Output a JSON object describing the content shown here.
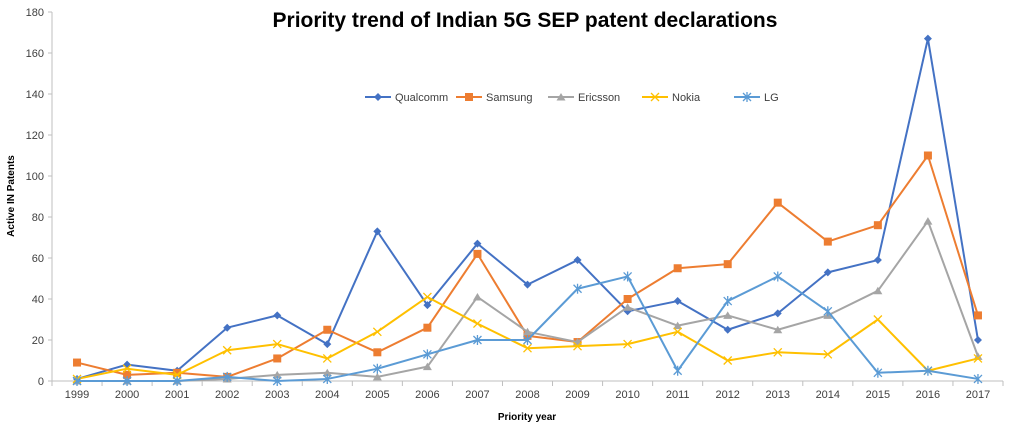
{
  "chart_data": {
    "type": "line",
    "title": "Priority trend of Indian 5G SEP patent declarations",
    "xlabel": "Priority year",
    "ylabel": "Active IN Patents",
    "ylim": [
      0,
      180
    ],
    "yticks": [
      0,
      20,
      40,
      60,
      80,
      100,
      120,
      140,
      160,
      180
    ],
    "grid": false,
    "legend_placement": "top-center",
    "categories": [
      "1999",
      "2000",
      "2001",
      "2002",
      "2003",
      "2004",
      "2005",
      "2006",
      "2007",
      "2008",
      "2009",
      "2010",
      "2011",
      "2012",
      "2013",
      "2014",
      "2015",
      "2016",
      "2017"
    ],
    "series": [
      {
        "name": "Qualcomm",
        "color": "#4472C4",
        "marker": "diamond",
        "values": [
          1,
          8,
          5,
          26,
          32,
          18,
          73,
          37,
          67,
          47,
          59,
          34,
          39,
          25,
          33,
          53,
          59,
          167,
          20
        ]
      },
      {
        "name": "Samsung",
        "color": "#ED7D31",
        "marker": "square",
        "values": [
          9,
          3,
          4,
          2,
          11,
          25,
          14,
          26,
          62,
          22,
          19,
          40,
          55,
          57,
          87,
          68,
          76,
          110,
          32
        ]
      },
      {
        "name": "Ericsson",
        "color": "#A5A5A5",
        "marker": "triangle",
        "values": [
          0,
          0,
          0,
          1,
          3,
          4,
          2,
          7,
          41,
          24,
          19,
          36,
          27,
          32,
          25,
          32,
          44,
          78,
          12
        ]
      },
      {
        "name": "Nokia",
        "color": "#FFC000",
        "marker": "x",
        "values": [
          1,
          6,
          3,
          15,
          18,
          11,
          24,
          41,
          28,
          16,
          17,
          18,
          24,
          10,
          14,
          13,
          30,
          5,
          11
        ]
      },
      {
        "name": "LG",
        "color": "#5B9BD5",
        "marker": "star",
        "values": [
          0,
          0,
          0,
          2,
          0,
          1,
          6,
          13,
          20,
          20,
          45,
          51,
          5,
          39,
          51,
          34,
          4,
          5,
          1
        ]
      }
    ]
  }
}
